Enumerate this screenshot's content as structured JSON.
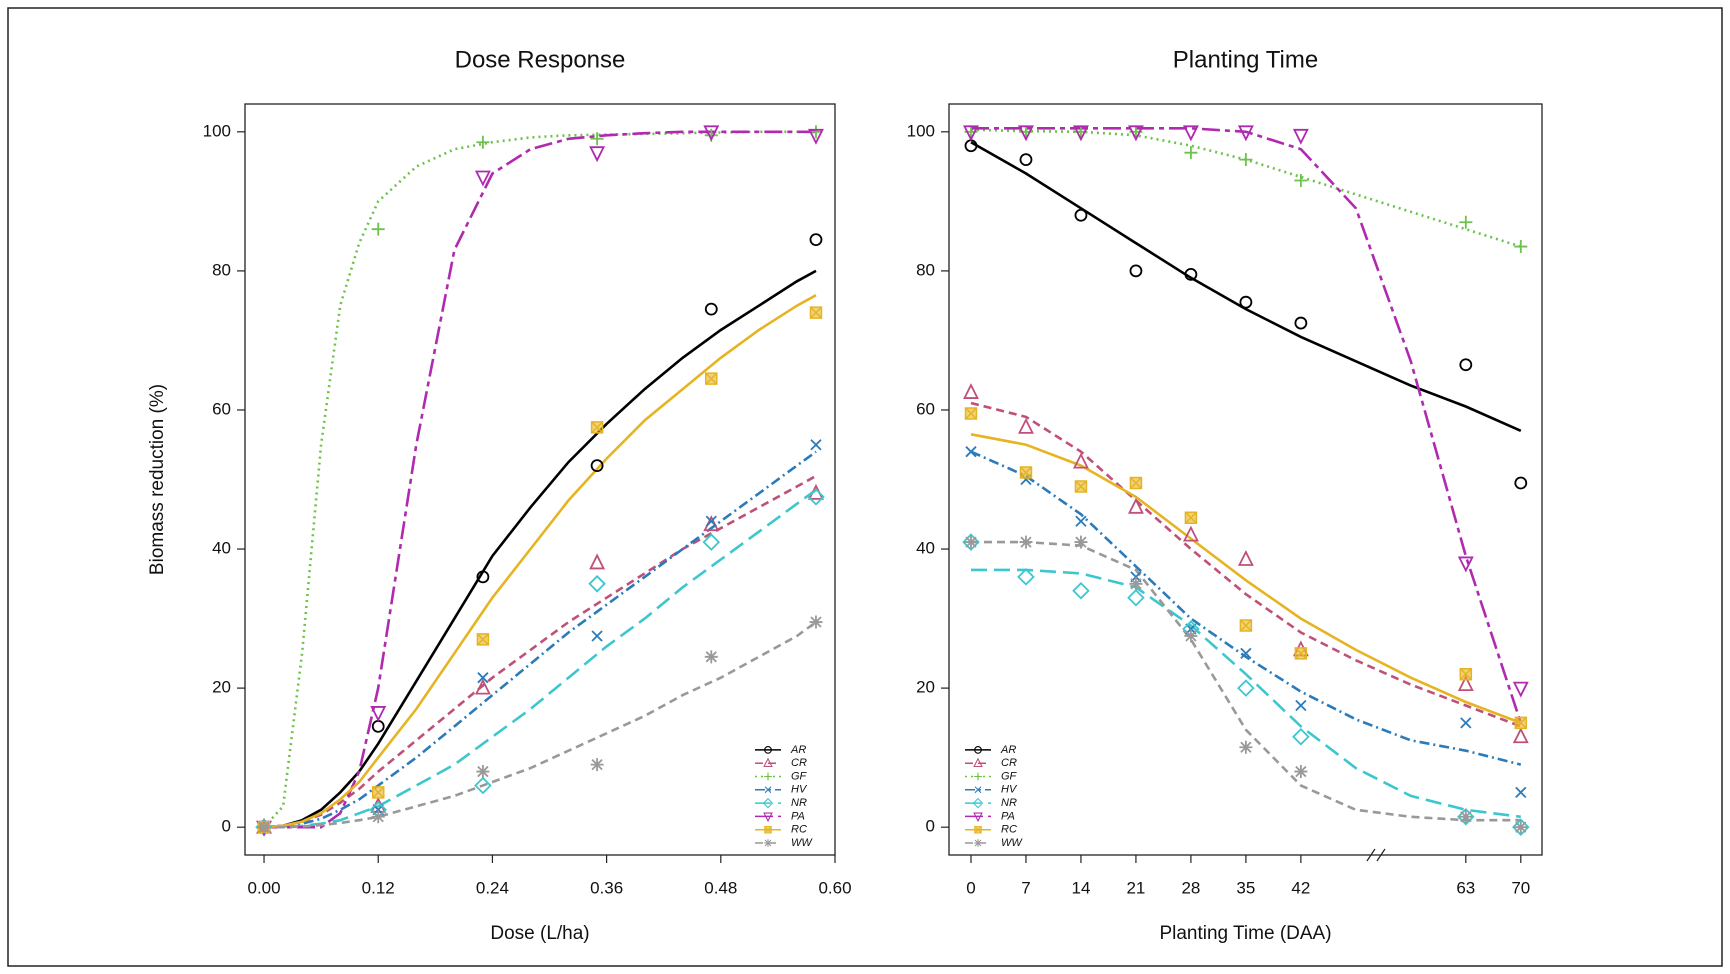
{
  "chart_data": [
    {
      "type": "scatter-fit",
      "title": "Dose Response",
      "x_label": "Dose (L/ha)",
      "y_label": "Biomass reduction (%)",
      "xlim": [
        -0.02,
        0.6
      ],
      "ylim": [
        -4,
        104
      ],
      "xticks": [
        {
          "value": 0,
          "label": "0.00"
        },
        0.12,
        0.24,
        0.36,
        0.48,
        {
          "value": 0.6,
          "label": "0.60"
        }
      ],
      "yticks": [
        0,
        20,
        40,
        60,
        80,
        100
      ],
      "legend": "bottom-right",
      "x": [
        0,
        0.12,
        0.23,
        0.35,
        0.47,
        0.58
      ],
      "fit_x": [
        0,
        0.02,
        0.04,
        0.06,
        0.08,
        0.1,
        0.12,
        0.16,
        0.2,
        0.24,
        0.28,
        0.32,
        0.36,
        0.4,
        0.44,
        0.48,
        0.52,
        0.56,
        0.58
      ],
      "series": [
        {
          "name": "AR",
          "color": "#000000",
          "line": "solid",
          "marker": "circle",
          "values": [
            0,
            14.5,
            36,
            52,
            74.5,
            84.5
          ],
          "fit": [
            0,
            0.2,
            1,
            2.5,
            5,
            8,
            12,
            21,
            30,
            39,
            46,
            52.5,
            58,
            63,
            67.5,
            71.5,
            75,
            78.5,
            80
          ]
        },
        {
          "name": "CR",
          "color": "#c0507a",
          "line": "dashed",
          "marker": "triangle",
          "values": [
            0,
            3,
            20,
            38,
            43.5,
            48
          ],
          "fit": [
            0,
            0.2,
            0.8,
            1.8,
            3.5,
            5.5,
            8,
            12.5,
            17,
            21.5,
            25.5,
            29.5,
            33,
            36.5,
            40,
            43,
            46,
            49,
            50.5
          ]
        },
        {
          "name": "GF",
          "color": "#6cc24a",
          "line": "dotted",
          "marker": "plus",
          "values": [
            0,
            86,
            98.5,
            99,
            99.5,
            100
          ],
          "fit": [
            0,
            3,
            25,
            55,
            75,
            84,
            90,
            95,
            97.5,
            98.5,
            99.2,
            99.5,
            99.6,
            99.7,
            99.8,
            99.9,
            100,
            100,
            100
          ]
        },
        {
          "name": "HV",
          "color": "#2b7bba",
          "line": "dashdot",
          "marker": "x",
          "values": [
            0,
            2.5,
            21.5,
            27.5,
            44,
            55
          ],
          "fit": [
            0,
            0.1,
            0.5,
            1.2,
            2.5,
            4,
            6,
            10,
            14.5,
            19,
            23.5,
            28,
            32,
            36,
            40,
            44,
            48,
            52,
            54
          ]
        },
        {
          "name": "NR",
          "color": "#3cc7cf",
          "line": "longdash",
          "marker": "diamond",
          "values": [
            0,
            2.5,
            6,
            35,
            41,
            47.5
          ],
          "fit": [
            0,
            0,
            0.2,
            0.5,
            1,
            2,
            3,
            6,
            9,
            13,
            17,
            21.5,
            26,
            30,
            34.5,
            38.5,
            42.5,
            46.5,
            48.5
          ]
        },
        {
          "name": "PA",
          "color": "#b02ab0",
          "line": "twodash",
          "marker": "down-triangle",
          "values": [
            0,
            16.5,
            93.5,
            97,
            100,
            99.5
          ],
          "fit": [
            0,
            0,
            0,
            0,
            2,
            8,
            20,
            55,
            83,
            94,
            97.5,
            99,
            99.5,
            99.8,
            100,
            100,
            100,
            100,
            100
          ]
        },
        {
          "name": "RC",
          "color": "#e6b422",
          "line": "solid",
          "marker": "square",
          "values": [
            0,
            5,
            27,
            57.5,
            64.5,
            74
          ],
          "fit": [
            0,
            0.2,
            0.8,
            2,
            4,
            6.5,
            10,
            17,
            25,
            33,
            40,
            47,
            53,
            58.5,
            63,
            67.5,
            71.5,
            75,
            76.5
          ]
        },
        {
          "name": "WW",
          "color": "#999999",
          "line": "dashed",
          "marker": "asterisk",
          "values": [
            0,
            1.5,
            8,
            9,
            24.5,
            29.5
          ],
          "fit": [
            0,
            0,
            0.1,
            0.3,
            0.6,
            1,
            1.5,
            3,
            4.5,
            6.5,
            8.5,
            11,
            13.5,
            16,
            19,
            21.5,
            24.5,
            27.5,
            29.5
          ]
        }
      ]
    },
    {
      "type": "scatter-fit",
      "title": "Planting Time",
      "x_label": "Planting Time (DAA)",
      "xlim": [
        -2.8,
        72.7
      ],
      "ylim": [
        -4,
        104
      ],
      "xticks": [
        0,
        7,
        14,
        21,
        28,
        35,
        42,
        63,
        70
      ],
      "yticks": [
        0,
        20,
        40,
        60,
        80,
        100
      ],
      "legend": "bottom-left",
      "x": [
        0,
        7,
        14,
        21,
        28,
        35,
        42,
        63,
        70
      ],
      "fit_x": [
        0,
        7,
        14,
        21,
        28,
        35,
        42,
        49,
        56,
        63,
        70
      ],
      "series": [
        {
          "name": "AR",
          "color": "#000000",
          "line": "solid",
          "marker": "circle",
          "values": [
            98,
            96,
            88,
            80,
            79.5,
            75.5,
            72.5,
            66.5,
            49.5
          ],
          "fit": [
            98.5,
            94,
            89,
            84,
            79,
            74.5,
            70.5,
            67,
            63.5,
            60.5,
            57
          ]
        },
        {
          "name": "CR",
          "color": "#c0507a",
          "line": "dashed",
          "marker": "triangle",
          "values": [
            62.5,
            57.5,
            52.5,
            46,
            42,
            38.5,
            25.5,
            20.5,
            13
          ],
          "fit": [
            61,
            59,
            54,
            47,
            40,
            33.5,
            28,
            24,
            20.5,
            17.5,
            14.5
          ]
        },
        {
          "name": "GF",
          "color": "#6cc24a",
          "line": "dotted",
          "marker": "plus",
          "values": [
            100,
            100,
            100,
            100,
            97,
            96,
            93,
            87,
            83.5
          ],
          "fit": [
            100.3,
            100.1,
            100,
            99.5,
            98,
            96,
            93.5,
            91,
            88.5,
            86,
            83.5
          ]
        },
        {
          "name": "HV",
          "color": "#2b7bba",
          "line": "dashdot",
          "marker": "x",
          "values": [
            54,
            50,
            44,
            36,
            28.5,
            25,
            17.5,
            15,
            5
          ],
          "fit": [
            54,
            50.5,
            45,
            37.5,
            30,
            24.5,
            19.5,
            15.5,
            12.5,
            11,
            9
          ]
        },
        {
          "name": "NR",
          "color": "#3cc7cf",
          "line": "longdash",
          "marker": "diamond",
          "values": [
            41,
            36,
            34,
            33,
            28.5,
            20,
            13,
            1.5,
            0
          ],
          "fit": [
            37,
            37,
            36.5,
            34.5,
            29,
            22,
            14.5,
            8.5,
            4.5,
            2.5,
            1.5
          ]
        },
        {
          "name": "PA",
          "color": "#b02ab0",
          "line": "twodash",
          "marker": "down-triangle",
          "values": [
            100,
            100,
            100,
            100,
            100,
            100,
            99.5,
            38,
            20
          ],
          "fit": [
            100.5,
            100.5,
            100.5,
            100.5,
            100.5,
            100,
            97.5,
            89,
            67,
            39,
            15
          ]
        },
        {
          "name": "RC",
          "color": "#e6b422",
          "line": "solid",
          "marker": "square",
          "values": [
            59.5,
            51,
            49,
            49.5,
            44.5,
            29,
            25,
            22,
            15
          ],
          "fit": [
            56.5,
            55,
            52,
            47.5,
            41.5,
            35.5,
            30,
            25.5,
            21.5,
            18,
            15
          ]
        },
        {
          "name": "WW",
          "color": "#999999",
          "line": "dashed",
          "marker": "asterisk",
          "values": [
            41,
            41,
            41,
            35,
            27.5,
            11.5,
            8,
            1.5,
            0
          ],
          "fit": [
            41,
            41,
            40.5,
            37,
            27,
            14,
            6,
            2.5,
            1.5,
            1,
            1
          ]
        }
      ]
    }
  ]
}
